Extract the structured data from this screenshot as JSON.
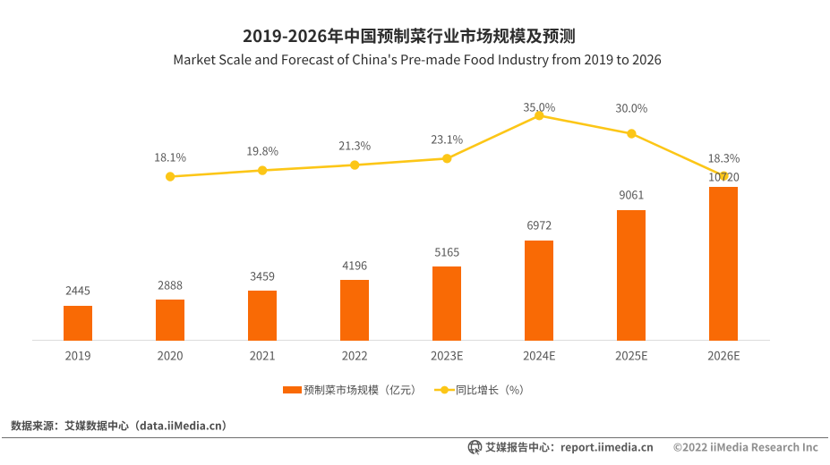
{
  "title": "2019-2026年中国预制菜行业市场规模及预测",
  "subtitle": "Market Scale and Forecast of China's Pre-made Food Industry from 2019 to 2026",
  "chart_data": {
    "type": "bar",
    "categories": [
      "2019",
      "2020",
      "2021",
      "2022",
      "2023E",
      "2024E",
      "2025E",
      "2026E"
    ],
    "series": [
      {
        "name": "预制菜市场规模（亿元）",
        "type": "bar",
        "values": [
          2445,
          2888,
          3459,
          4196,
          5165,
          6972,
          9061,
          10720
        ],
        "labels": [
          "2445",
          "2888",
          "3459",
          "4196",
          "5165",
          "6972",
          "9061",
          "10720"
        ],
        "color": "#f96a05"
      },
      {
        "name": "同比增长（%）",
        "type": "line",
        "categories": [
          "2020",
          "2021",
          "2022",
          "2023E",
          "2024E",
          "2025E",
          "2026E"
        ],
        "values": [
          18.1,
          19.8,
          21.3,
          23.1,
          35.0,
          30.0,
          18.3
        ],
        "labels": [
          "18.1%",
          "19.8%",
          "21.3%",
          "23.1%",
          "35.0%",
          "30.0%",
          "18.3%"
        ],
        "color": "#fcc617"
      }
    ],
    "title": "2019-2026年中国预制菜行业市场规模及预测",
    "xlabel": "",
    "ylabel": "",
    "legend_position": "bottom",
    "grid": false
  },
  "source_note": "数据来源：艾媒数据中心（data.iiMedia.cn）",
  "footer": {
    "logo": "globe-cursor-icon",
    "brand": "艾媒报告中心：",
    "url": "report.iimedia.cn",
    "copyright": "©2022  iiMedia Research  Inc"
  },
  "colors": {
    "bar": "#f96a05",
    "line": "#fcc617",
    "label_text": "#555555",
    "title_text": "#2d2d2d",
    "axis_line": "#dcdcdc"
  }
}
